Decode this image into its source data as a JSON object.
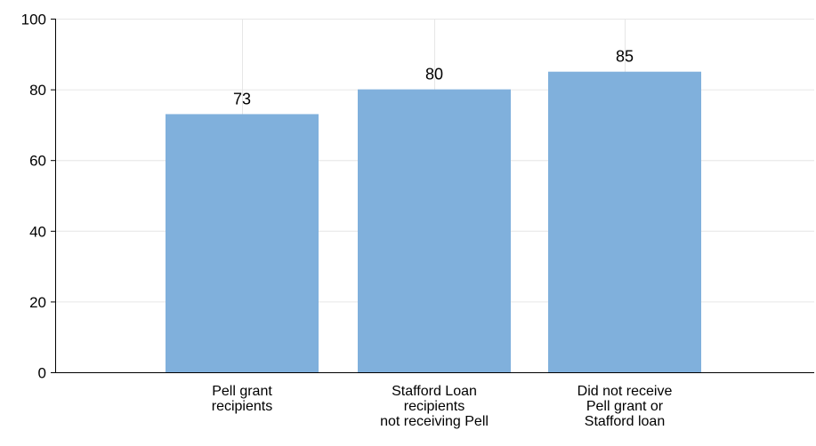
{
  "chart_data": {
    "type": "bar",
    "categories": [
      [
        "Pell grant",
        "recipients"
      ],
      [
        "Stafford Loan",
        "recipients",
        "not receiving Pell"
      ],
      [
        "Did not receive",
        "Pell grant or",
        "Stafford loan"
      ]
    ],
    "values": [
      73,
      80,
      85
    ],
    "data_labels": [
      "73",
      "80",
      "85"
    ],
    "ylim": [
      0,
      100
    ],
    "yticks": [
      0,
      20,
      40,
      60,
      80,
      100
    ],
    "grid": true,
    "title": "",
    "xlabel": "",
    "ylabel": ""
  },
  "colors": {
    "bar": "#80b0dc",
    "axis": "#000000",
    "grid": "#e6e6e6"
  }
}
